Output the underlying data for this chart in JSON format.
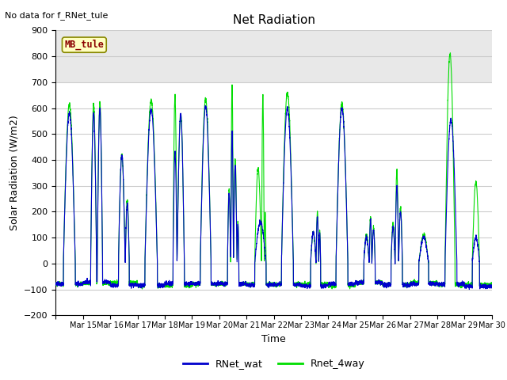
{
  "title": "Net Radiation",
  "xlabel": "Time",
  "ylabel": "Solar Radiation (W/m2)",
  "top_label": "No data for f_RNet_tule",
  "legend_box_label": "MB_tule",
  "ylim": [
    -200,
    900
  ],
  "yticks": [
    -200,
    -100,
    0,
    100,
    200,
    300,
    400,
    500,
    600,
    700,
    800,
    900
  ],
  "x_tick_labels": [
    "Mar 15",
    "Mar 16",
    "Mar 17",
    "Mar 18",
    "Mar 19",
    "Mar 20",
    "Mar 21",
    "Mar 22",
    "Mar 23",
    "Mar 24",
    "Mar 25",
    "Mar 26",
    "Mar 27",
    "Mar 28",
    "Mar 29",
    "Mar 30"
  ],
  "wat_color": "#0000cc",
  "way_color": "#00dd00",
  "bg_color": "#ffffff",
  "grid_color": "#cccccc",
  "band_color": "#e8e8e8",
  "n_days": 16,
  "ppd": 288,
  "night_val": -80,
  "legend_box_facecolor": "#ffffc0",
  "legend_box_edgecolor": "#888800"
}
